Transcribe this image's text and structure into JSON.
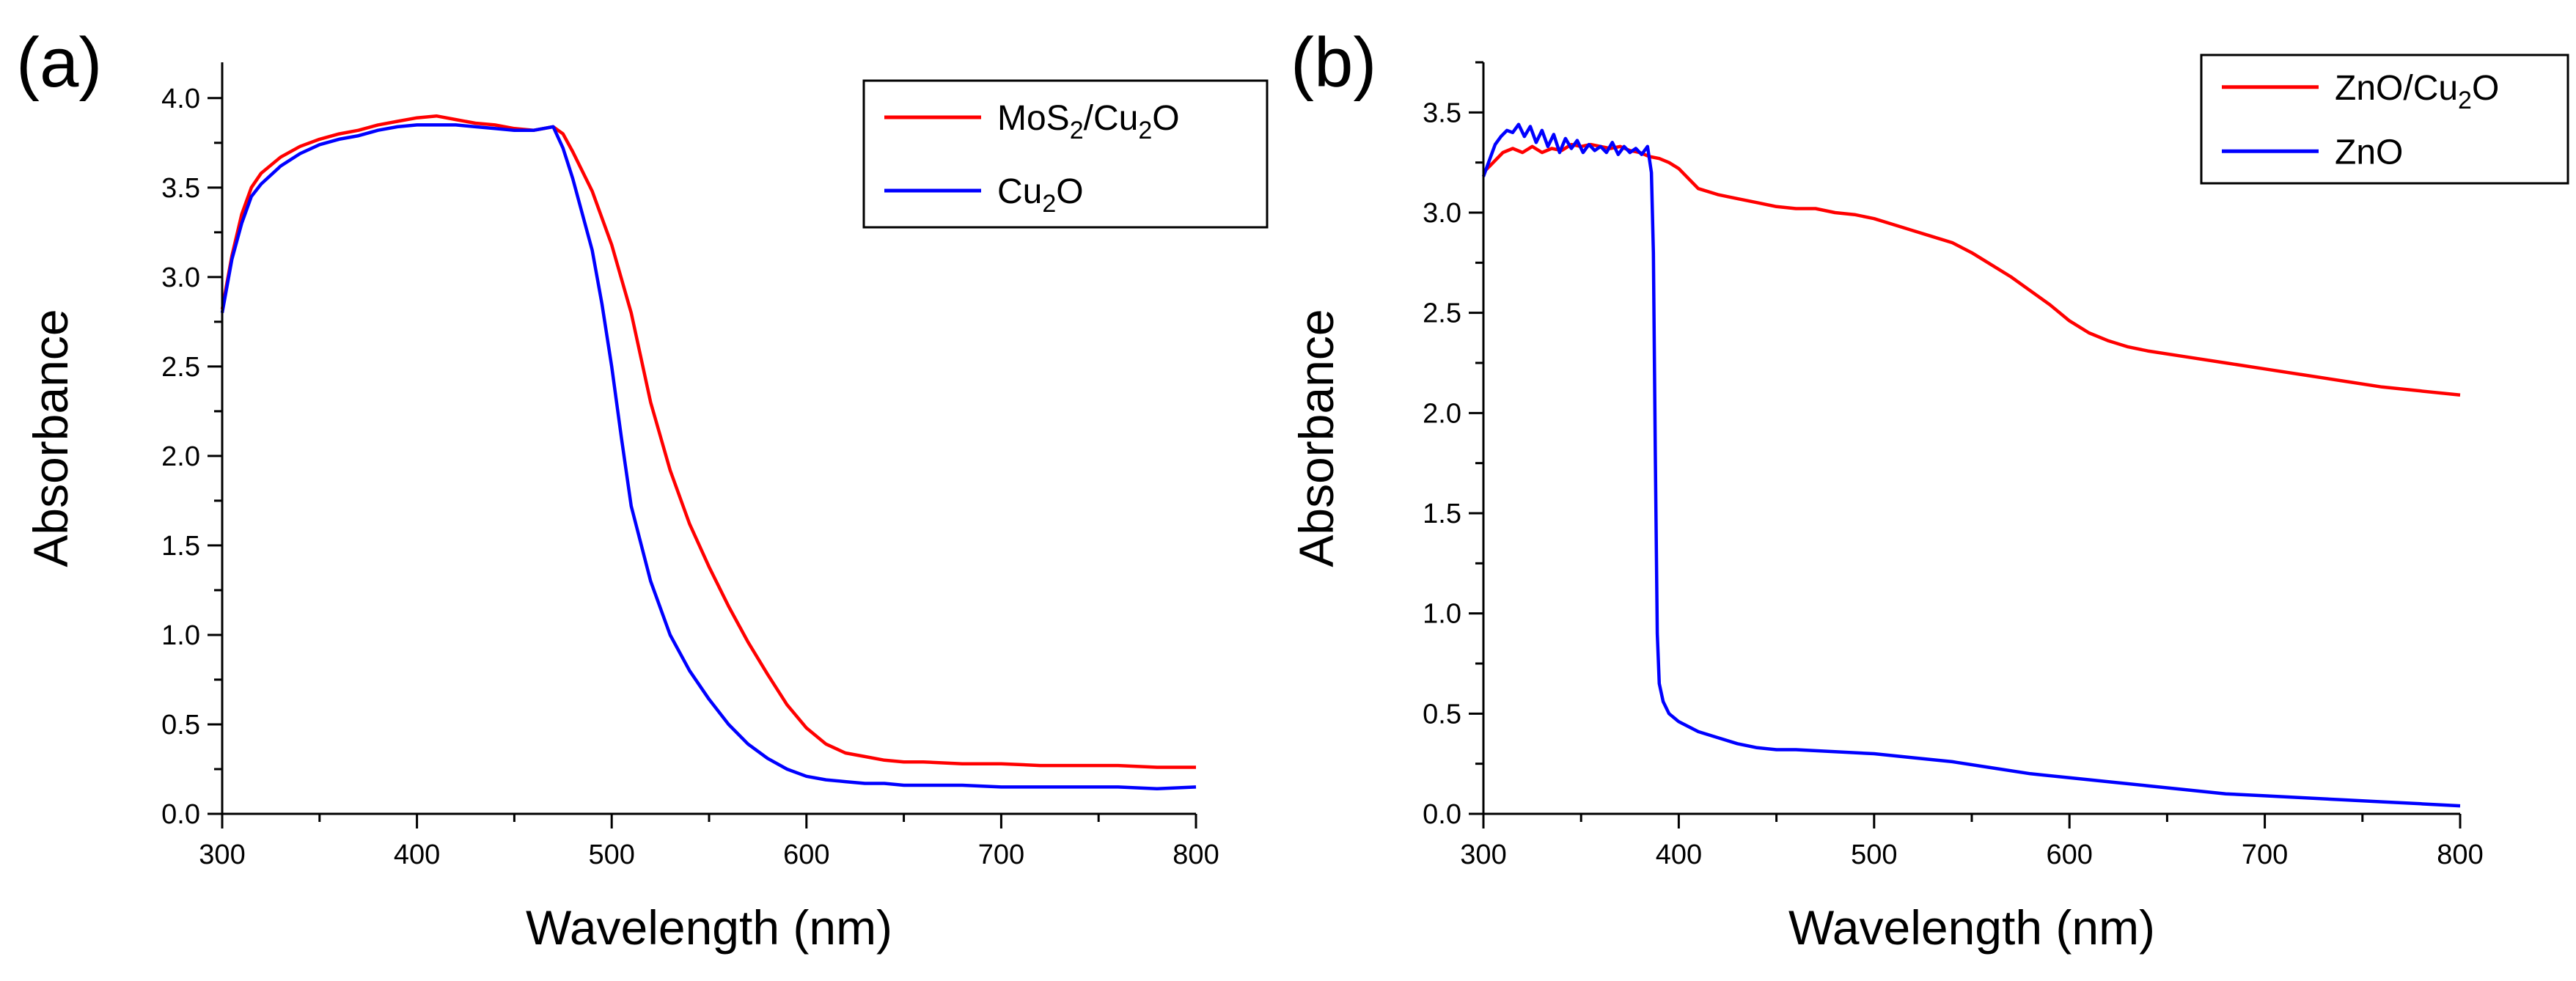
{
  "chart_data": [
    {
      "panel": "(a)",
      "type": "line",
      "xlabel": "Wavelength (nm)",
      "ylabel": "Absorbance",
      "xlim": [
        300,
        800
      ],
      "ylim": [
        0,
        4.2
      ],
      "xticks": [
        300,
        400,
        500,
        600,
        700,
        800
      ],
      "xtick_labels": [
        "300",
        "400",
        "500",
        "600",
        "700",
        "800"
      ],
      "yticks": [
        0.0,
        0.5,
        1.0,
        1.5,
        2.0,
        2.5,
        3.0,
        3.5,
        4.0
      ],
      "ytick_labels": [
        "0.0",
        "0.5",
        "1.0",
        "1.5",
        "2.0",
        "2.5",
        "3.0",
        "3.5",
        "4.0"
      ],
      "legend_position": "top-right",
      "series": [
        {
          "name": "MoS2/Cu2O",
          "label_parts": [
            {
              "t": "MoS"
            },
            {
              "t": "2",
              "sub": true
            },
            {
              "t": "/Cu"
            },
            {
              "t": "2",
              "sub": true
            },
            {
              "t": "O"
            }
          ],
          "color": "#ff0000",
          "x": [
            300,
            305,
            310,
            315,
            320,
            330,
            340,
            350,
            360,
            370,
            380,
            390,
            400,
            410,
            420,
            430,
            440,
            450,
            460,
            470,
            475,
            480,
            490,
            500,
            510,
            520,
            530,
            540,
            550,
            560,
            570,
            580,
            590,
            600,
            610,
            620,
            630,
            640,
            650,
            660,
            680,
            700,
            720,
            740,
            760,
            780,
            800
          ],
          "y": [
            2.82,
            3.12,
            3.35,
            3.5,
            3.58,
            3.67,
            3.73,
            3.77,
            3.8,
            3.82,
            3.85,
            3.87,
            3.89,
            3.9,
            3.88,
            3.86,
            3.85,
            3.83,
            3.82,
            3.84,
            3.8,
            3.7,
            3.48,
            3.18,
            2.8,
            2.3,
            1.92,
            1.62,
            1.38,
            1.16,
            0.96,
            0.78,
            0.61,
            0.48,
            0.39,
            0.34,
            0.32,
            0.3,
            0.29,
            0.29,
            0.28,
            0.28,
            0.27,
            0.27,
            0.27,
            0.26,
            0.26
          ]
        },
        {
          "name": "Cu2O",
          "label_parts": [
            {
              "t": "Cu"
            },
            {
              "t": "2",
              "sub": true
            },
            {
              "t": "O"
            }
          ],
          "color": "#0000ff",
          "x": [
            300,
            305,
            310,
            315,
            320,
            330,
            340,
            350,
            360,
            370,
            380,
            390,
            400,
            410,
            420,
            430,
            440,
            450,
            460,
            470,
            475,
            480,
            490,
            495,
            500,
            505,
            510,
            520,
            530,
            540,
            550,
            560,
            570,
            580,
            590,
            600,
            610,
            620,
            630,
            640,
            650,
            660,
            680,
            700,
            720,
            740,
            760,
            780,
            800
          ],
          "y": [
            2.8,
            3.1,
            3.3,
            3.45,
            3.52,
            3.62,
            3.69,
            3.74,
            3.77,
            3.79,
            3.82,
            3.84,
            3.85,
            3.85,
            3.85,
            3.84,
            3.83,
            3.82,
            3.82,
            3.84,
            3.72,
            3.55,
            3.15,
            2.85,
            2.5,
            2.1,
            1.72,
            1.3,
            1.0,
            0.8,
            0.64,
            0.5,
            0.39,
            0.31,
            0.25,
            0.21,
            0.19,
            0.18,
            0.17,
            0.17,
            0.16,
            0.16,
            0.16,
            0.15,
            0.15,
            0.15,
            0.15,
            0.14,
            0.15
          ]
        }
      ]
    },
    {
      "panel": "(b)",
      "type": "line",
      "xlabel": "Wavelength (nm)",
      "ylabel": "Absorbance",
      "xlim": [
        300,
        800
      ],
      "ylim": [
        0,
        3.75
      ],
      "xticks": [
        300,
        400,
        500,
        600,
        700,
        800
      ],
      "xtick_labels": [
        "300",
        "400",
        "500",
        "600",
        "700",
        "800"
      ],
      "yticks": [
        0.0,
        0.5,
        1.0,
        1.5,
        2.0,
        2.5,
        3.0,
        3.5
      ],
      "ytick_labels": [
        "0.0",
        "0.5",
        "1.0",
        "1.5",
        "2.0",
        "2.5",
        "3.0",
        "3.5"
      ],
      "legend_position": "top-right",
      "series": [
        {
          "name": "ZnO/Cu2O",
          "label_parts": [
            {
              "t": "ZnO/Cu"
            },
            {
              "t": "2",
              "sub": true
            },
            {
              "t": "O"
            }
          ],
          "color": "#ff0000",
          "x": [
            300,
            305,
            310,
            315,
            320,
            325,
            330,
            335,
            340,
            345,
            350,
            355,
            360,
            365,
            370,
            375,
            380,
            385,
            390,
            395,
            400,
            410,
            420,
            430,
            440,
            450,
            460,
            470,
            480,
            490,
            500,
            510,
            520,
            530,
            540,
            550,
            560,
            570,
            580,
            590,
            600,
            610,
            620,
            630,
            640,
            660,
            680,
            700,
            720,
            740,
            760,
            780,
            800
          ],
          "y": [
            3.2,
            3.25,
            3.3,
            3.32,
            3.3,
            3.33,
            3.3,
            3.32,
            3.31,
            3.34,
            3.33,
            3.34,
            3.33,
            3.32,
            3.33,
            3.31,
            3.3,
            3.28,
            3.27,
            3.25,
            3.22,
            3.12,
            3.09,
            3.07,
            3.05,
            3.03,
            3.02,
            3.02,
            3.0,
            2.99,
            2.97,
            2.94,
            2.91,
            2.88,
            2.85,
            2.8,
            2.74,
            2.68,
            2.61,
            2.54,
            2.46,
            2.4,
            2.36,
            2.33,
            2.31,
            2.28,
            2.25,
            2.22,
            2.19,
            2.16,
            2.13,
            2.11,
            2.09
          ]
        },
        {
          "name": "ZnO",
          "label_parts": [
            {
              "t": "ZnO"
            }
          ],
          "color": "#0000ff",
          "x": [
            300,
            303,
            306,
            309,
            312,
            315,
            318,
            321,
            324,
            327,
            330,
            333,
            336,
            339,
            342,
            345,
            348,
            351,
            354,
            357,
            360,
            363,
            366,
            369,
            372,
            375,
            378,
            381,
            384,
            386,
            387,
            388,
            389,
            390,
            392,
            395,
            400,
            410,
            420,
            430,
            440,
            450,
            460,
            480,
            500,
            520,
            540,
            560,
            580,
            600,
            620,
            640,
            660,
            680,
            700,
            720,
            740,
            760,
            780,
            800
          ],
          "y": [
            3.18,
            3.26,
            3.34,
            3.38,
            3.41,
            3.4,
            3.44,
            3.38,
            3.43,
            3.35,
            3.41,
            3.33,
            3.39,
            3.3,
            3.37,
            3.32,
            3.36,
            3.3,
            3.34,
            3.31,
            3.33,
            3.3,
            3.35,
            3.29,
            3.33,
            3.3,
            3.32,
            3.29,
            3.33,
            3.2,
            2.8,
            1.8,
            0.9,
            0.65,
            0.56,
            0.5,
            0.46,
            0.41,
            0.38,
            0.35,
            0.33,
            0.32,
            0.32,
            0.31,
            0.3,
            0.28,
            0.26,
            0.23,
            0.2,
            0.18,
            0.16,
            0.14,
            0.12,
            0.1,
            0.09,
            0.08,
            0.07,
            0.06,
            0.05,
            0.04
          ]
        }
      ]
    }
  ]
}
